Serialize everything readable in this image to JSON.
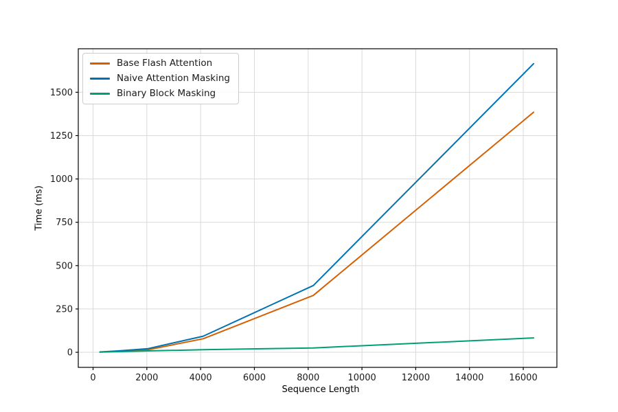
{
  "figure": {
    "background": "#ffffff"
  },
  "chart_data": {
    "type": "line",
    "title": "",
    "xlabel": "Sequence Length",
    "ylabel": "Time (ms)",
    "x": [
      256,
      512,
      1024,
      2048,
      4096,
      8192,
      16384
    ],
    "series": [
      {
        "name": "Base Flash Attention",
        "color": "#d55e00",
        "values": [
          1,
          3,
          7,
          15,
          78,
          328,
          1385
        ]
      },
      {
        "name": "Naive Attention Masking",
        "color": "#0072b2",
        "values": [
          2,
          4,
          9,
          21,
          93,
          385,
          1665
        ]
      },
      {
        "name": "Binary Block Masking",
        "color": "#009e73",
        "values": [
          1,
          2,
          4,
          8,
          15,
          25,
          83
        ]
      }
    ],
    "xticks": [
      0,
      2000,
      4000,
      6000,
      8000,
      10000,
      12000,
      14000,
      16000
    ],
    "yticks": [
      0,
      250,
      500,
      750,
      1000,
      1250,
      1500
    ],
    "xlim": [
      -550,
      17250
    ],
    "ylim": [
      -87,
      1751
    ],
    "grid": true,
    "grid_color": "#d9d9d9",
    "spine_color": "#000000",
    "tick_color": "#000000",
    "tick_label_color": "#1a1a1a",
    "legend_position": "upper-left",
    "line_width": 2
  }
}
